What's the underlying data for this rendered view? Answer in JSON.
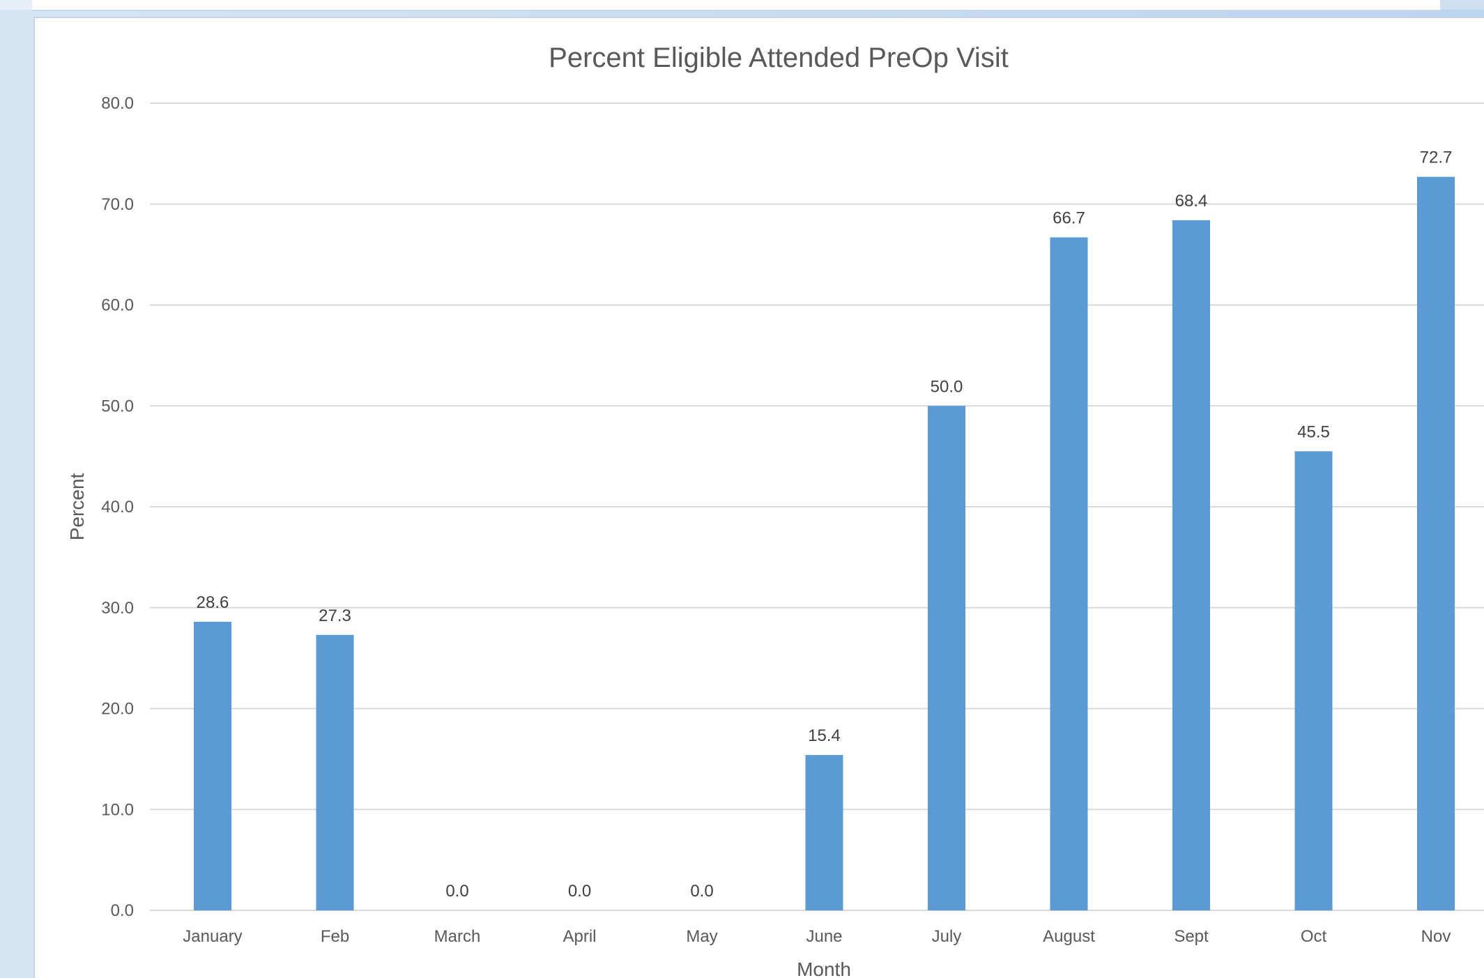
{
  "chart_data": {
    "type": "bar",
    "title": "Percent Eligible Attended PreOp Visit",
    "xlabel": "Month",
    "ylabel": "Percent",
    "categories": [
      "January",
      "Feb",
      "March",
      "April",
      "May",
      "June",
      "July",
      "August",
      "Sept",
      "Oct",
      "Nov"
    ],
    "values": [
      28.6,
      27.3,
      0.0,
      0.0,
      0.0,
      15.4,
      50.0,
      66.7,
      68.4,
      45.5,
      72.7
    ],
    "data_labels": [
      "28.6",
      "27.3",
      "0.0",
      "0.0",
      "0.0",
      "15.4",
      "50.0",
      "66.7",
      "68.4",
      "45.5",
      "72.7"
    ],
    "ylim": [
      0,
      80
    ],
    "yticks": [
      "0.0",
      "10.0",
      "20.0",
      "30.0",
      "40.0",
      "50.0",
      "60.0",
      "70.0",
      "80.0"
    ],
    "grid": true,
    "legend": "none",
    "colors": {
      "bar": "#5b9bd5",
      "grid": "#d9d9d9",
      "text": "#595959"
    }
  }
}
